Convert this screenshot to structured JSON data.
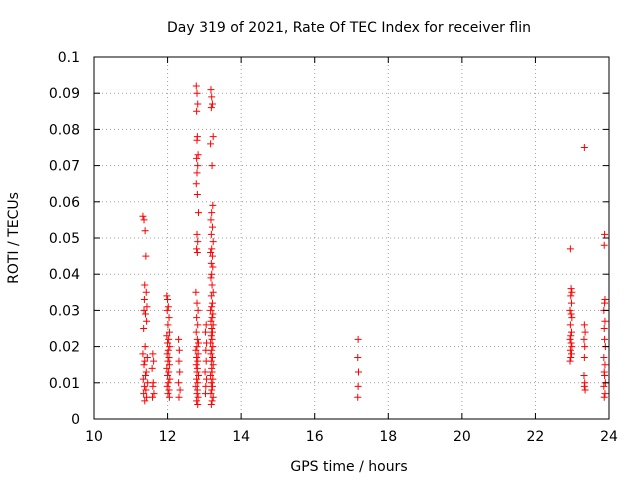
{
  "colors": {
    "series": "#ff0000",
    "axis": "#000000",
    "grid": "#a0a0a0",
    "background": "#ffffff"
  },
  "chart_data": {
    "type": "scatter",
    "title": "Day 319 of 2021, Rate Of TEC Index for receiver flin",
    "xlabel": "GPS time / hours",
    "ylabel": "ROTI / TECUs",
    "xlim": [
      10,
      24
    ],
    "ylim": [
      0,
      0.1
    ],
    "grid": true,
    "marker": "plus",
    "x_ticks": [
      10,
      12,
      14,
      16,
      18,
      20,
      22,
      24
    ],
    "x_tick_labels": [
      "10",
      "12",
      "14",
      "16",
      "18",
      "20",
      "22",
      "24"
    ],
    "y_ticks": [
      0,
      0.01,
      0.02,
      0.03,
      0.04,
      0.05,
      0.06,
      0.07,
      0.08,
      0.09,
      0.1
    ],
    "y_tick_labels": [
      "0",
      "0.01",
      "0.02",
      "0.03",
      "0.04",
      "0.05",
      "0.06",
      "0.07",
      "0.08",
      "0.09",
      "0.1"
    ],
    "series": [
      {
        "color": "#ff0000",
        "points": [
          [
            11.33,
            0.056
          ],
          [
            11.36,
            0.055
          ],
          [
            11.39,
            0.052
          ],
          [
            11.41,
            0.045
          ],
          [
            11.38,
            0.037
          ],
          [
            11.42,
            0.035
          ],
          [
            11.37,
            0.033
          ],
          [
            11.44,
            0.031
          ],
          [
            11.36,
            0.03
          ],
          [
            11.4,
            0.029
          ],
          [
            11.43,
            0.027
          ],
          [
            11.35,
            0.025
          ],
          [
            11.39,
            0.02
          ],
          [
            11.33,
            0.018
          ],
          [
            11.45,
            0.017
          ],
          [
            11.38,
            0.016
          ],
          [
            11.36,
            0.015
          ],
          [
            11.42,
            0.013
          ],
          [
            11.4,
            0.012
          ],
          [
            11.34,
            0.011
          ],
          [
            11.46,
            0.01
          ],
          [
            11.37,
            0.009
          ],
          [
            11.41,
            0.008
          ],
          [
            11.35,
            0.007
          ],
          [
            11.43,
            0.006
          ],
          [
            11.38,
            0.005
          ],
          [
            11.6,
            0.018
          ],
          [
            11.62,
            0.016
          ],
          [
            11.58,
            0.014
          ],
          [
            11.61,
            0.01
          ],
          [
            11.6,
            0.009
          ],
          [
            11.63,
            0.007
          ],
          [
            11.59,
            0.006
          ],
          [
            11.98,
            0.034
          ],
          [
            12.0,
            0.033
          ],
          [
            12.02,
            0.031
          ],
          [
            11.99,
            0.03
          ],
          [
            12.04,
            0.028
          ],
          [
            12.01,
            0.026
          ],
          [
            12.05,
            0.024
          ],
          [
            11.98,
            0.023
          ],
          [
            12.03,
            0.022
          ],
          [
            12.0,
            0.021
          ],
          [
            12.06,
            0.02
          ],
          [
            12.02,
            0.019
          ],
          [
            11.99,
            0.018
          ],
          [
            12.04,
            0.017
          ],
          [
            12.01,
            0.016
          ],
          [
            12.05,
            0.015
          ],
          [
            11.98,
            0.014
          ],
          [
            12.03,
            0.013
          ],
          [
            12.0,
            0.012
          ],
          [
            12.06,
            0.011
          ],
          [
            12.02,
            0.01
          ],
          [
            11.99,
            0.009
          ],
          [
            12.04,
            0.008
          ],
          [
            12.01,
            0.007
          ],
          [
            12.05,
            0.006
          ],
          [
            12.3,
            0.022
          ],
          [
            12.32,
            0.019
          ],
          [
            12.31,
            0.016
          ],
          [
            12.33,
            0.013
          ],
          [
            12.3,
            0.01
          ],
          [
            12.34,
            0.008
          ],
          [
            12.31,
            0.006
          ],
          [
            12.78,
            0.092
          ],
          [
            12.8,
            0.09
          ],
          [
            12.82,
            0.087
          ],
          [
            12.79,
            0.085
          ],
          [
            12.81,
            0.078
          ],
          [
            12.8,
            0.077
          ],
          [
            12.83,
            0.073
          ],
          [
            12.79,
            0.072
          ],
          [
            12.82,
            0.07
          ],
          [
            12.8,
            0.068
          ],
          [
            12.78,
            0.065
          ],
          [
            12.81,
            0.062
          ],
          [
            12.84,
            0.057
          ],
          [
            12.8,
            0.051
          ],
          [
            12.82,
            0.049
          ],
          [
            12.79,
            0.047
          ],
          [
            12.81,
            0.046
          ],
          [
            12.77,
            0.035
          ],
          [
            12.8,
            0.032
          ],
          [
            12.83,
            0.03
          ],
          [
            12.79,
            0.028
          ],
          [
            12.82,
            0.026
          ],
          [
            12.78,
            0.024
          ],
          [
            12.81,
            0.022
          ],
          [
            12.84,
            0.021
          ],
          [
            12.8,
            0.02
          ],
          [
            12.77,
            0.019
          ],
          [
            12.83,
            0.018
          ],
          [
            12.79,
            0.017
          ],
          [
            12.82,
            0.016
          ],
          [
            12.78,
            0.015
          ],
          [
            12.81,
            0.014
          ],
          [
            12.8,
            0.013
          ],
          [
            12.84,
            0.012
          ],
          [
            12.79,
            0.011
          ],
          [
            12.82,
            0.01
          ],
          [
            12.77,
            0.009
          ],
          [
            12.81,
            0.008
          ],
          [
            12.8,
            0.007
          ],
          [
            12.83,
            0.006
          ],
          [
            12.79,
            0.005
          ],
          [
            12.82,
            0.004
          ],
          [
            13.18,
            0.091
          ],
          [
            13.2,
            0.089
          ],
          [
            13.22,
            0.087
          ],
          [
            13.19,
            0.086
          ],
          [
            13.24,
            0.078
          ],
          [
            13.17,
            0.076
          ],
          [
            13.21,
            0.07
          ],
          [
            13.23,
            0.059
          ],
          [
            13.2,
            0.057
          ],
          [
            13.18,
            0.055
          ],
          [
            13.22,
            0.053
          ],
          [
            13.19,
            0.051
          ],
          [
            13.24,
            0.049
          ],
          [
            13.2,
            0.047
          ],
          [
            13.17,
            0.046
          ],
          [
            13.22,
            0.045
          ],
          [
            13.19,
            0.043
          ],
          [
            13.23,
            0.042
          ],
          [
            13.2,
            0.04
          ],
          [
            13.18,
            0.039
          ],
          [
            13.21,
            0.037
          ],
          [
            13.24,
            0.035
          ],
          [
            13.19,
            0.034
          ],
          [
            13.22,
            0.032
          ],
          [
            13.2,
            0.031
          ],
          [
            13.17,
            0.03
          ],
          [
            13.23,
            0.029
          ],
          [
            13.21,
            0.028
          ],
          [
            13.18,
            0.027
          ],
          [
            13.24,
            0.026
          ],
          [
            13.2,
            0.025
          ],
          [
            13.22,
            0.024
          ],
          [
            13.19,
            0.023
          ],
          [
            13.21,
            0.022
          ],
          [
            13.17,
            0.021
          ],
          [
            13.23,
            0.02
          ],
          [
            13.2,
            0.019
          ],
          [
            13.18,
            0.018
          ],
          [
            13.22,
            0.017
          ],
          [
            13.19,
            0.016
          ],
          [
            13.24,
            0.015
          ],
          [
            13.2,
            0.014
          ],
          [
            13.21,
            0.013
          ],
          [
            13.17,
            0.012
          ],
          [
            13.23,
            0.011
          ],
          [
            13.19,
            0.01
          ],
          [
            13.22,
            0.009
          ],
          [
            13.2,
            0.008
          ],
          [
            13.18,
            0.007
          ],
          [
            13.24,
            0.006
          ],
          [
            13.21,
            0.005
          ],
          [
            13.19,
            0.004
          ],
          [
            13.05,
            0.026
          ],
          [
            13.03,
            0.024
          ],
          [
            13.06,
            0.021
          ],
          [
            13.04,
            0.019
          ],
          [
            13.05,
            0.016
          ],
          [
            13.02,
            0.013
          ],
          [
            13.06,
            0.011
          ],
          [
            13.04,
            0.009
          ],
          [
            13.03,
            0.007
          ],
          [
            17.18,
            0.022
          ],
          [
            17.17,
            0.017
          ],
          [
            17.19,
            0.013
          ],
          [
            17.18,
            0.009
          ],
          [
            17.17,
            0.006
          ],
          [
            22.95,
            0.047
          ],
          [
            22.97,
            0.036
          ],
          [
            22.99,
            0.035
          ],
          [
            22.96,
            0.034
          ],
          [
            22.98,
            0.032
          ],
          [
            22.94,
            0.03
          ],
          [
            22.97,
            0.029
          ],
          [
            22.99,
            0.028
          ],
          [
            22.95,
            0.026
          ],
          [
            22.98,
            0.024
          ],
          [
            22.96,
            0.023
          ],
          [
            22.94,
            0.022
          ],
          [
            22.97,
            0.021
          ],
          [
            22.99,
            0.02
          ],
          [
            22.95,
            0.019
          ],
          [
            22.98,
            0.018
          ],
          [
            22.96,
            0.017
          ],
          [
            22.94,
            0.016
          ],
          [
            23.33,
            0.075
          ],
          [
            23.33,
            0.026
          ],
          [
            23.35,
            0.024
          ],
          [
            23.32,
            0.022
          ],
          [
            23.34,
            0.02
          ],
          [
            23.33,
            0.017
          ],
          [
            23.32,
            0.012
          ],
          [
            23.34,
            0.01
          ],
          [
            23.33,
            0.009
          ],
          [
            23.35,
            0.008
          ],
          [
            23.88,
            0.051
          ],
          [
            23.87,
            0.048
          ],
          [
            23.89,
            0.033
          ],
          [
            23.88,
            0.032
          ],
          [
            23.86,
            0.03
          ],
          [
            23.89,
            0.027
          ],
          [
            23.87,
            0.025
          ],
          [
            23.88,
            0.022
          ],
          [
            23.9,
            0.02
          ],
          [
            23.86,
            0.017
          ],
          [
            23.89,
            0.015
          ],
          [
            23.87,
            0.013
          ],
          [
            23.88,
            0.012
          ],
          [
            23.9,
            0.01
          ],
          [
            23.86,
            0.009
          ],
          [
            23.89,
            0.007
          ],
          [
            23.87,
            0.006
          ]
        ]
      }
    ]
  }
}
